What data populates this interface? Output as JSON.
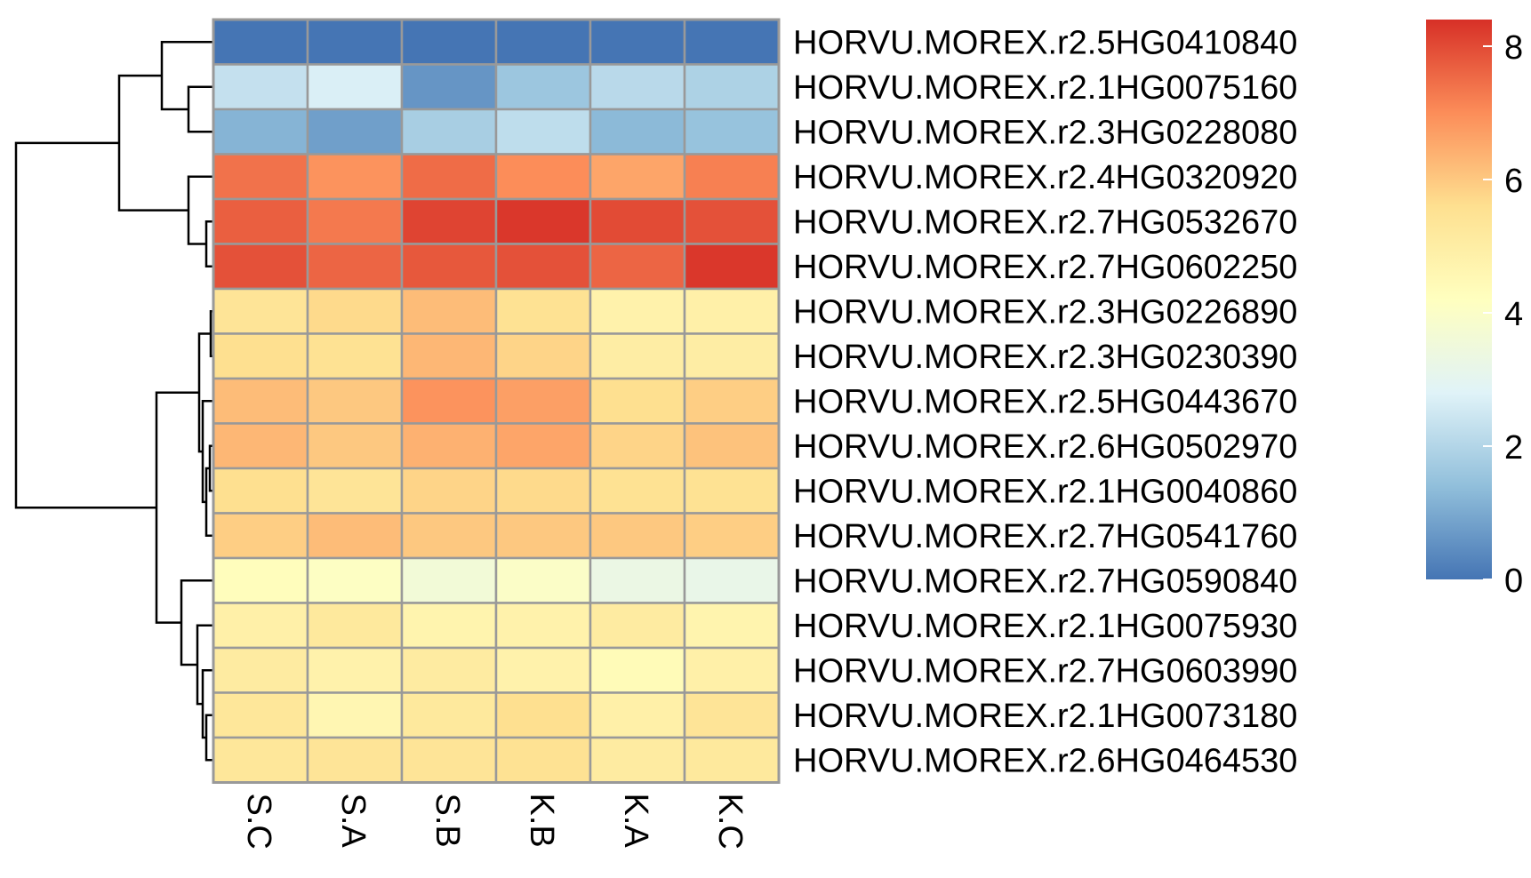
{
  "chart_data": {
    "type": "heatmap",
    "title": "",
    "columns": [
      "S.C",
      "S.A",
      "S.B",
      "K.B",
      "K.A",
      "K.C"
    ],
    "rows": [
      "HORVU.MOREX.r2.5HG0410840",
      "HORVU.MOREX.r2.1HG0075160",
      "HORVU.MOREX.r2.3HG0228080",
      "HORVU.MOREX.r2.4HG0320920",
      "HORVU.MOREX.r2.7HG0532670",
      "HORVU.MOREX.r2.7HG0602250",
      "HORVU.MOREX.r2.3HG0226890",
      "HORVU.MOREX.r2.3HG0230390",
      "HORVU.MOREX.r2.5HG0443670",
      "HORVU.MOREX.r2.6HG0502970",
      "HORVU.MOREX.r2.1HG0040860",
      "HORVU.MOREX.r2.7HG0541760",
      "HORVU.MOREX.r2.7HG0590840",
      "HORVU.MOREX.r2.1HG0075930",
      "HORVU.MOREX.r2.7HG0603990",
      "HORVU.MOREX.r2.1HG0073180",
      "HORVU.MOREX.r2.6HG0464530"
    ],
    "values": [
      [
        0.0,
        0.0,
        0.0,
        0.0,
        0.0,
        0.0
      ],
      [
        2.3,
        2.7,
        0.6,
        1.6,
        2.1,
        1.9
      ],
      [
        1.2,
        0.8,
        1.8,
        2.2,
        1.3,
        1.5
      ],
      [
        7.4,
        6.9,
        7.5,
        7.0,
        6.6,
        7.2
      ],
      [
        7.7,
        7.3,
        8.1,
        8.3,
        8.0,
        7.9
      ],
      [
        7.9,
        7.6,
        7.8,
        7.9,
        7.6,
        8.3
      ],
      [
        5.4,
        5.7,
        6.2,
        5.5,
        4.8,
        4.9
      ],
      [
        5.6,
        5.5,
        6.3,
        5.8,
        5.0,
        5.0
      ],
      [
        6.2,
        6.0,
        6.9,
        6.7,
        5.6,
        5.9
      ],
      [
        6.3,
        6.0,
        6.4,
        6.6,
        5.8,
        6.1
      ],
      [
        5.6,
        5.4,
        5.8,
        5.7,
        5.5,
        5.5
      ],
      [
        5.9,
        6.2,
        6.0,
        6.0,
        6.0,
        5.9
      ],
      [
        4.3,
        4.1,
        3.6,
        4.0,
        3.3,
        3.2
      ],
      [
        4.9,
        5.2,
        4.7,
        4.8,
        5.1,
        4.7
      ],
      [
        5.1,
        4.8,
        5.1,
        4.8,
        4.4,
        4.9
      ],
      [
        5.3,
        4.6,
        5.2,
        5.6,
        4.9,
        5.4
      ],
      [
        5.3,
        5.4,
        5.4,
        5.5,
        5.1,
        5.2
      ]
    ],
    "color_scale": {
      "min": 0,
      "max": 8.4,
      "ticks": [
        0,
        2,
        4,
        6,
        8
      ],
      "tick_labels": [
        "0",
        "2",
        "4",
        "6",
        "8"
      ],
      "colors": [
        "#4575b4",
        "#91bfdb",
        "#e0f3f8",
        "#ffffbf",
        "#fee090",
        "#fc8d59",
        "#d73027"
      ]
    },
    "cell_border_color": "#999999",
    "row_dendrogram": true,
    "legend_placement": "right"
  }
}
